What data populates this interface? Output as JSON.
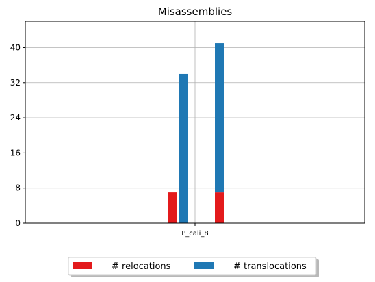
{
  "chart_data": {
    "type": "bar",
    "title": "Misassemblies",
    "xlabel": "",
    "ylabel": "",
    "categories": [
      "P_cali_8"
    ],
    "yticks": [
      0,
      8,
      16,
      24,
      32,
      40
    ],
    "ylim": [
      0,
      46
    ],
    "grid": true,
    "legend_position": "bottom",
    "bars": [
      {
        "series": "# relocations",
        "value": 7,
        "base": 0
      },
      {
        "series": "# translocations",
        "value": 34,
        "base": 0
      },
      {
        "series": "# relocations",
        "value": 7,
        "base": 0
      },
      {
        "series": "# translocations",
        "value": 34,
        "base": 7
      }
    ],
    "series": [
      {
        "name": "# relocations",
        "color": "#e31a1c"
      },
      {
        "name": "# translocations",
        "color": "#1f78b4"
      }
    ]
  }
}
